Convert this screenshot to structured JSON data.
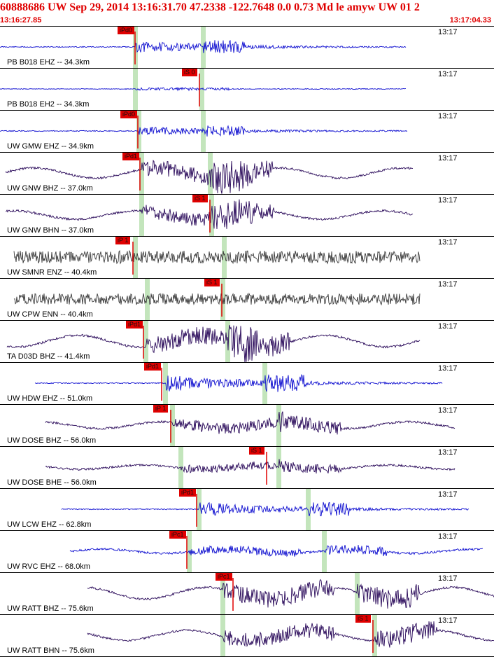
{
  "header": {
    "title": "60888686 UW Sep 29, 2014 13:16:31.70    47.2338 -122.7648   0.0 0.73 Md le amyw UW 01    2",
    "start_time": "13:16:27.85",
    "end_time": "13:17:04.33"
  },
  "colors": {
    "header_text": "#e00000",
    "pick_box": "#e00000",
    "pick_band": "#b8e0b0",
    "trace_blue": "#1010d0",
    "trace_purple": "#2a0a5a",
    "trace_gray": "#3a3a3a"
  },
  "traces": [
    {
      "label": "PB B018 EHZ -- 34.3km",
      "time": "13:17",
      "pick": "iPd0",
      "color": "blue"
    },
    {
      "label": "PB B018 EH2 -- 34.3km",
      "time": "13:17",
      "pick": "iS 0",
      "color": "blue"
    },
    {
      "label": "UW GMW EHZ -- 34.9km",
      "time": "13:17",
      "pick": "iPd0",
      "color": "blue"
    },
    {
      "label": "UW GNW BHZ -- 37.0km",
      "time": "13:17",
      "pick": "iPd1",
      "color": "purple"
    },
    {
      "label": "UW GNW BHN -- 37.0km",
      "time": "13:17",
      "pick": "iS 1",
      "color": "purple"
    },
    {
      "label": "UW SMNR ENZ -- 40.4km",
      "time": "13:17",
      "pick": "iP 1",
      "color": "gray"
    },
    {
      "label": "UW CPW ENN -- 40.4km",
      "time": "13:17",
      "pick": "iS 1",
      "color": "gray"
    },
    {
      "label": "TA D03D BHZ -- 41.4km",
      "time": "13:17",
      "pick": "iPd1",
      "color": "purple"
    },
    {
      "label": "UW HDW EHZ -- 51.0km",
      "time": "13:17",
      "pick": "iPd1",
      "color": "blue"
    },
    {
      "label": "UW DOSE BHZ -- 56.0km",
      "time": "13:17",
      "pick": "iP 1",
      "color": "purple"
    },
    {
      "label": "UW DOSE BHE -- 56.0km",
      "time": "13:17",
      "pick": "iS 1",
      "color": "purple"
    },
    {
      "label": "UW LCW EHZ -- 62.8km",
      "time": "13:17",
      "pick": "iPd1",
      "color": "blue"
    },
    {
      "label": "UW RVC EHZ -- 68.0km",
      "time": "13:17",
      "pick": "iPc1",
      "color": "blue"
    },
    {
      "label": "UW RATT BHZ -- 75.6km",
      "time": "13:17",
      "pick": "iPc1",
      "color": "purple"
    },
    {
      "label": "UW RATT BHN -- 75.6km",
      "time": "13:17",
      "pick": "iS 1",
      "color": "purple"
    }
  ]
}
